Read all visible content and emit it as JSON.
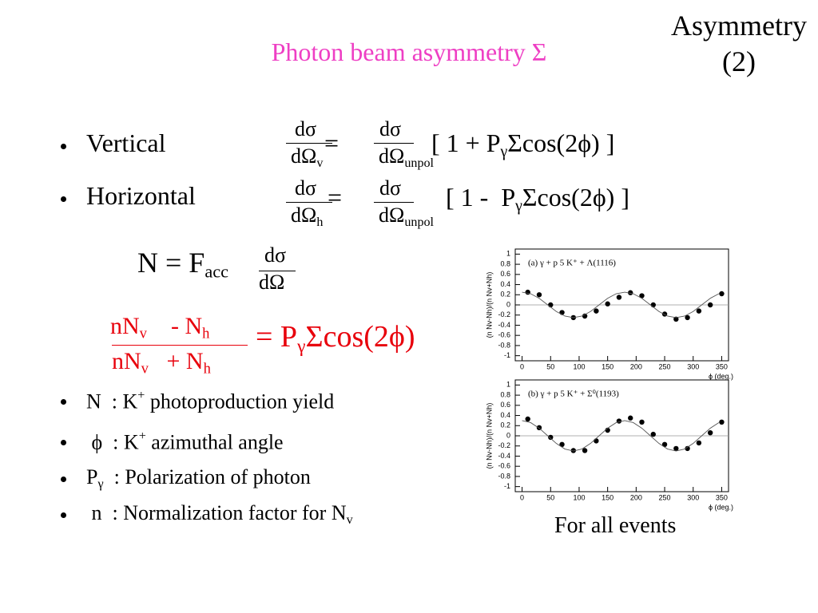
{
  "corner_title": "Asymmetry (2)",
  "title": "Photon beam asymmetry Σ",
  "cross_sections": [
    {
      "label": "Vertical",
      "lhs_numerator": "dσ",
      "lhs_denominator": [
        {
          "text": "dΩ"
        },
        {
          "sub": "v"
        }
      ],
      "equals": "=",
      "rhs_numerator": "dσ",
      "rhs_denominator": [
        {
          "text": "dΩ"
        },
        {
          "sub": "unpol"
        }
      ],
      "factor": [
        {
          "text": "[ 1 + P"
        },
        {
          "sub": "γ"
        },
        {
          "text": "Σcos(2ϕ) ]"
        }
      ]
    },
    {
      "label": "Horizontal",
      "lhs_numerator": "dσ",
      "lhs_denominator": [
        {
          "text": "dΩ"
        },
        {
          "sub": "h"
        }
      ],
      "equals": "=",
      "rhs_numerator": "dσ",
      "rhs_denominator": [
        {
          "text": "dΩ"
        },
        {
          "sub": "unpol"
        }
      ],
      "factor": [
        {
          "text": "[ 1 -  P"
        },
        {
          "sub": "γ"
        },
        {
          "text": "Σcos(2ϕ) ]"
        }
      ]
    }
  ],
  "yield_formula": {
    "lhs": [
      {
        "text": "N = F"
      },
      {
        "sub": "acc"
      }
    ],
    "numerator": "dσ",
    "denominator": "dΩ"
  },
  "asymmetry_formula": {
    "numerator": [
      {
        "text": "nN"
      },
      {
        "sub": "v"
      },
      {
        "text": "    - N"
      },
      {
        "sub": "h"
      }
    ],
    "denominator": [
      {
        "text": "nN"
      },
      {
        "sub": "v"
      },
      {
        "text": "   + N"
      },
      {
        "sub": "h"
      }
    ],
    "rhs": [
      {
        "text": "= P"
      },
      {
        "sub": "γ"
      },
      {
        "text": "Σcos(2ϕ)"
      }
    ]
  },
  "definitions": [
    [
      {
        "text": "N  : K"
      },
      {
        "sup": "+"
      },
      {
        "text": " photoproduction yield"
      }
    ],
    [
      {
        "text": " ϕ  : K"
      },
      {
        "sup": "+"
      },
      {
        "text": " azimuthal angle"
      }
    ],
    [
      {
        "text": "P"
      },
      {
        "sub": "γ"
      },
      {
        "text": "  : Polarization of photon"
      }
    ],
    [
      {
        "text": " n  : Normalization factor for N"
      },
      {
        "sub": "v"
      }
    ]
  ],
  "caption": "For all events",
  "chart_data": [
    {
      "type": "scatter",
      "annotation": "(a) γ + p 5 K⁺ + Λ(1116)",
      "y_label": "(n Nv-Nh)/(n Nv+Nh)",
      "x_label": "ϕ (deg.)",
      "xlim": [
        -12,
        362
      ],
      "ylim": [
        -1.1,
        1.1
      ],
      "xticks": [
        0,
        50,
        100,
        150,
        200,
        250,
        300,
        350
      ],
      "yticks": [
        -1,
        -0.8,
        -0.6,
        -0.4,
        -0.2,
        0,
        0.2,
        0.4,
        0.6,
        0.8,
        1
      ],
      "hline": 0,
      "series": [
        {
          "mode": "markers",
          "color": "#000000",
          "x": [
            10,
            30,
            50,
            70,
            90,
            110,
            130,
            150,
            170,
            190,
            210,
            230,
            250,
            270,
            290,
            310,
            330,
            350
          ],
          "values": [
            0.25,
            0.2,
            0.0,
            -0.15,
            -0.25,
            -0.22,
            -0.12,
            0.02,
            0.15,
            0.24,
            0.18,
            0.0,
            -0.18,
            -0.28,
            -0.25,
            -0.12,
            0.0,
            0.22
          ]
        },
        {
          "mode": "line",
          "color": "#555555",
          "x": [
            0,
            15,
            30,
            45,
            60,
            75,
            90,
            105,
            120,
            135,
            150,
            165,
            180,
            195,
            210,
            225,
            240,
            255,
            270,
            285,
            300,
            315,
            330,
            345
          ],
          "values": [
            0.25,
            0.22,
            0.13,
            0,
            -0.13,
            -0.22,
            -0.25,
            -0.22,
            -0.13,
            0,
            0.13,
            0.22,
            0.25,
            0.22,
            0.13,
            0,
            -0.13,
            -0.22,
            -0.25,
            -0.22,
            -0.13,
            0,
            0.13,
            0.22
          ]
        }
      ]
    },
    {
      "type": "scatter",
      "annotation": "(b) γ + p 5 K⁺ + Σ⁰(1193)",
      "y_label": "(n Nv-Nh)/(n Nv+Nh)",
      "x_label": "ϕ (deg.)",
      "xlim": [
        -12,
        362
      ],
      "ylim": [
        -1.1,
        1.1
      ],
      "xticks": [
        0,
        50,
        100,
        150,
        200,
        250,
        300,
        350
      ],
      "yticks": [
        -1,
        -0.8,
        -0.6,
        -0.4,
        -0.2,
        0,
        0.2,
        0.4,
        0.6,
        0.8,
        1
      ],
      "hline": 0,
      "series": [
        {
          "mode": "markers",
          "color": "#000000",
          "x": [
            10,
            30,
            50,
            70,
            90,
            110,
            130,
            150,
            170,
            190,
            210,
            230,
            250,
            270,
            290,
            310,
            330,
            350
          ],
          "values": [
            0.33,
            0.16,
            -0.03,
            -0.17,
            -0.29,
            -0.29,
            -0.1,
            0.11,
            0.29,
            0.35,
            0.27,
            0.03,
            -0.17,
            -0.25,
            -0.25,
            -0.14,
            0.06,
            0.27
          ]
        },
        {
          "mode": "line",
          "color": "#555555",
          "x": [
            0,
            15,
            30,
            45,
            60,
            75,
            90,
            105,
            120,
            135,
            150,
            165,
            180,
            195,
            210,
            225,
            240,
            255,
            270,
            285,
            300,
            315,
            330,
            345
          ],
          "values": [
            0.3,
            0.26,
            0.15,
            0,
            -0.15,
            -0.26,
            -0.3,
            -0.26,
            -0.15,
            0,
            0.15,
            0.26,
            0.3,
            0.26,
            0.15,
            0,
            -0.15,
            -0.26,
            -0.3,
            -0.26,
            -0.15,
            0,
            0.15,
            0.26
          ]
        }
      ]
    }
  ]
}
